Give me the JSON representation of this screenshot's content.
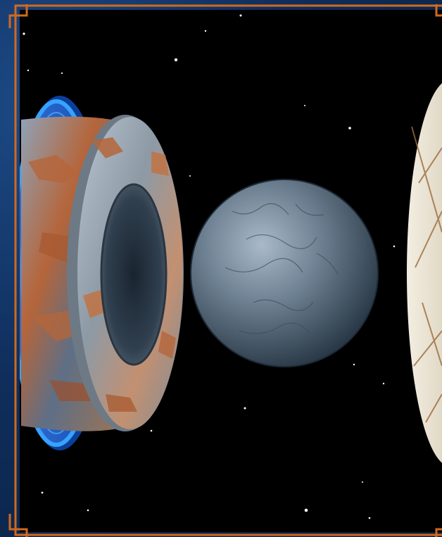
{
  "scene": {
    "description_icon": "planet-interior-cutaway",
    "colors": {
      "frame_border": "#d2691e",
      "space": "#000000",
      "outer_shell_ice": "#1e7bff",
      "crust_rust": "#b5653a",
      "core_gray": "#6f8293",
      "right_shell_cream": "#e9e1cf"
    }
  }
}
